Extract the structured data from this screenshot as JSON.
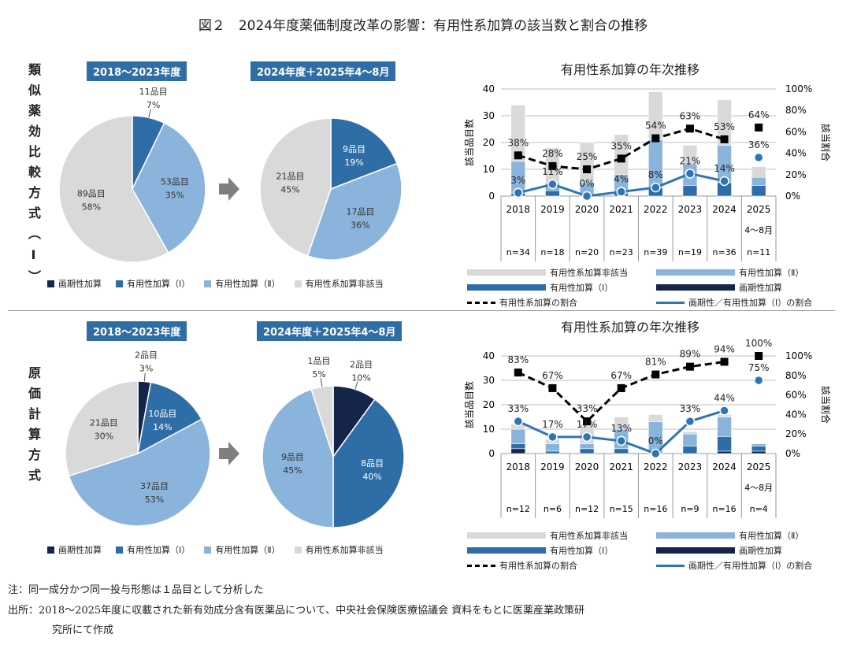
{
  "title": "図２　2024年度薬価制度改革の影響：有用性系加算の該当数と割合の推移",
  "sections": [
    {
      "label": "類似薬効比較方式（Ⅰ）"
    },
    {
      "label": "原価計算方式"
    }
  ],
  "colors": {
    "breakthrough": "#15254a",
    "useful1": "#2e6da6",
    "useful2": "#8bb4dc",
    "non": "#d9d9d9",
    "ratio_all": "#000000",
    "ratio_12": "#2e75b6"
  },
  "pie_legend": [
    "画期性加算",
    "有用性加算（Ⅰ）",
    "有用性加算（Ⅱ）",
    "有用性系加算非該当"
  ],
  "combo_legend": [
    "有用性系加算非該当",
    "有用性加算（Ⅱ）",
    "有用性加算（Ⅰ）",
    "画期性加算",
    "有用性系加算の割合",
    "画期性／有用性加算（Ⅰ）の割合"
  ],
  "arrow_icon": "right-arrow",
  "chart_data": [
    {
      "type": "pie",
      "title": "2018～2023年度",
      "slices": [
        {
          "key": "useful1",
          "value": 11,
          "count_label": "11品目",
          "percent": "7%"
        },
        {
          "key": "useful2",
          "value": 53,
          "count_label": "53品目",
          "percent": "35%"
        },
        {
          "key": "non",
          "value": 89,
          "count_label": "89品目",
          "percent": "58%"
        }
      ]
    },
    {
      "type": "pie",
      "title": "2024年度＋2025年4～8月",
      "slices": [
        {
          "key": "useful1",
          "value": 9,
          "count_label": "9品目",
          "percent": "19%"
        },
        {
          "key": "useful2",
          "value": 17,
          "count_label": "17品目",
          "percent": "36%"
        },
        {
          "key": "non",
          "value": 21,
          "count_label": "21品目",
          "percent": "45%"
        }
      ]
    },
    {
      "type": "bar",
      "title": "有用性系加算の年次推移",
      "ylabel": "該当品目数",
      "y2label": "該当割合",
      "ylim": [
        0,
        40
      ],
      "y2lim": [
        0,
        100
      ],
      "yticks": [
        "0",
        "10",
        "20",
        "30",
        "40"
      ],
      "y2ticks": [
        "0%",
        "20%",
        "40%",
        "60%",
        "80%",
        "100%"
      ],
      "categories": [
        "2018",
        "2019",
        "2020",
        "2021",
        "2022",
        "2023",
        "2024",
        "2025"
      ],
      "category_sublabels": [
        "",
        "",
        "",
        "",
        "",
        "",
        "",
        "4～8月"
      ],
      "n_labels": [
        "n=34",
        "n=18",
        "n=20",
        "n=23",
        "n=39",
        "n=19",
        "n=36",
        "n=11"
      ],
      "series": [
        {
          "name": "画期性加算",
          "key": "breakthrough",
          "values": [
            0,
            0,
            0,
            0,
            0,
            0,
            0,
            0
          ]
        },
        {
          "name": "有用性加算（Ⅰ）",
          "key": "useful1",
          "values": [
            1,
            2,
            0,
            1,
            3,
            4,
            5,
            4
          ]
        },
        {
          "name": "有用性加算（Ⅱ）",
          "key": "useful2",
          "values": [
            12,
            3,
            5,
            7,
            18,
            8,
            14,
            3
          ]
        },
        {
          "name": "有用性系加算非該当",
          "key": "non",
          "values": [
            21,
            13,
            15,
            15,
            18,
            7,
            17,
            4
          ]
        }
      ],
      "lines": [
        {
          "name": "有用性系加算の割合",
          "key": "ratio_all",
          "values": [
            38,
            28,
            25,
            35,
            54,
            63,
            53,
            64
          ],
          "labels": [
            "38%",
            "28%",
            "25%",
            "35%",
            "54%",
            "63%",
            "53%",
            "64%"
          ]
        },
        {
          "name": "画期性／有用性加算（Ⅰ）の割合",
          "key": "ratio_12",
          "values": [
            3,
            11,
            0,
            4,
            8,
            21,
            14,
            36
          ],
          "labels": [
            "3%",
            "11%",
            "0%",
            "4%",
            "8%",
            "21%",
            "14%",
            "36%"
          ]
        }
      ]
    },
    {
      "type": "pie",
      "title": "2018～2023年度",
      "slices": [
        {
          "key": "breakthrough",
          "value": 2,
          "count_label": "2品目",
          "percent": "3%"
        },
        {
          "key": "useful1",
          "value": 10,
          "count_label": "10品目",
          "percent": "14%"
        },
        {
          "key": "useful2",
          "value": 37,
          "count_label": "37品目",
          "percent": "53%"
        },
        {
          "key": "non",
          "value": 21,
          "count_label": "21品目",
          "percent": "30%"
        }
      ]
    },
    {
      "type": "pie",
      "title": "2024年度＋2025年4～8月",
      "slices": [
        {
          "key": "breakthrough",
          "value": 2,
          "count_label": "2品目",
          "percent": "10%"
        },
        {
          "key": "useful1",
          "value": 8,
          "count_label": "8品目",
          "percent": "40%"
        },
        {
          "key": "useful2",
          "value": 9,
          "count_label": "9品目",
          "percent": "45%"
        },
        {
          "key": "non",
          "value": 1,
          "count_label": "1品目",
          "percent": "5%"
        }
      ]
    },
    {
      "type": "bar",
      "title": "有用性系加算の年次推移",
      "ylabel": "該当品目数",
      "y2label": "該当割合",
      "ylim": [
        0,
        40
      ],
      "y2lim": [
        0,
        100
      ],
      "yticks": [
        "0",
        "10",
        "20",
        "30",
        "40"
      ],
      "y2ticks": [
        "0%",
        "20%",
        "40%",
        "60%",
        "80%",
        "100%"
      ],
      "categories": [
        "2018",
        "2019",
        "2020",
        "2021",
        "2022",
        "2023",
        "2024",
        "2025"
      ],
      "category_sublabels": [
        "",
        "",
        "",
        "",
        "",
        "",
        "",
        "4～8月"
      ],
      "n_labels": [
        "n=12",
        "n=6",
        "n=12",
        "n=15",
        "n=16",
        "n=9",
        "n=16",
        "n=4"
      ],
      "series": [
        {
          "name": "画期性加算",
          "key": "breakthrough",
          "values": [
            2,
            0,
            0,
            0,
            0,
            0,
            1,
            1
          ]
        },
        {
          "name": "有用性加算（Ⅰ）",
          "key": "useful1",
          "values": [
            2,
            1,
            2,
            2,
            0,
            3,
            6,
            2
          ]
        },
        {
          "name": "有用性加算（Ⅱ）",
          "key": "useful2",
          "values": [
            6,
            3,
            2,
            8,
            13,
            5,
            8,
            1
          ]
        },
        {
          "name": "有用性系加算非該当",
          "key": "non",
          "values": [
            2,
            2,
            8,
            5,
            3,
            1,
            1,
            0
          ]
        }
      ],
      "lines": [
        {
          "name": "有用性系加算の割合",
          "key": "ratio_all",
          "values": [
            83,
            67,
            33,
            67,
            81,
            89,
            94,
            100
          ],
          "labels": [
            "83%",
            "67%",
            "33%",
            "67%",
            "81%",
            "89%",
            "94%",
            "100%"
          ]
        },
        {
          "name": "画期性／有用性加算（Ⅰ）の割合",
          "key": "ratio_12",
          "values": [
            33,
            17,
            17,
            13,
            0,
            33,
            44,
            75
          ],
          "labels": [
            "33%",
            "17%",
            "17%",
            "13%",
            "0%",
            "33%",
            "44%",
            "75%"
          ]
        }
      ]
    }
  ],
  "notes": {
    "note": "注：同一成分かつ同一投与形態は１品目として分析した",
    "source": "出所：2018～2025年度に収載された新有効成分含有医薬品について、中央社会保険医療協議会 資料をもとに医薬産業政策研",
    "source_cont": "究所にて作成"
  }
}
